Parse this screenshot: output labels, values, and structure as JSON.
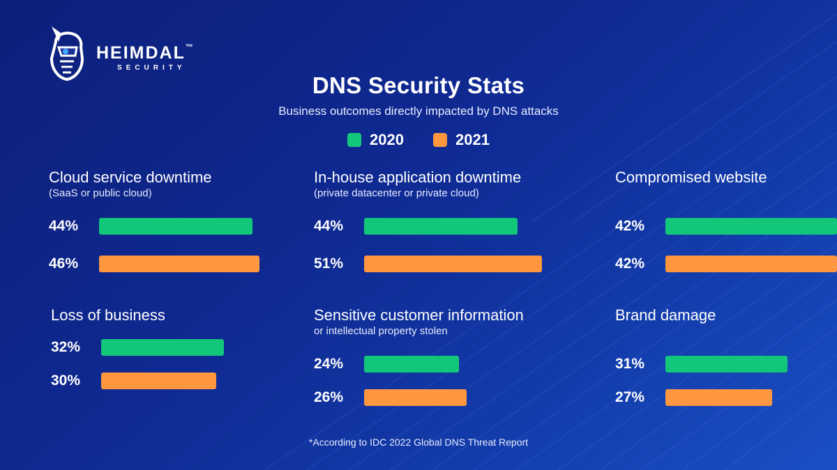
{
  "brand": {
    "name": "HEIMDAL",
    "tm": "™",
    "sub": "SECURITY",
    "logo_icon": "viking-helmet-icon"
  },
  "colors": {
    "series_2020": "#13c77a",
    "series_2021": "#ff9640"
  },
  "chart_data": {
    "type": "bar",
    "orientation": "horizontal",
    "title": "DNS Security Stats",
    "subtitle": "Business outcomes directly impacted by DNS attacks",
    "legend_position": "top-center",
    "xlim": [
      0,
      100
    ],
    "series_names": [
      "2020",
      "2021"
    ],
    "panels": [
      {
        "title": "Cloud service downtime",
        "note": "(SaaS or public cloud)",
        "values": [
          44,
          46
        ],
        "labels": [
          "44%",
          "46%"
        ]
      },
      {
        "title": "In-house application downtime",
        "note": "(private datacenter or private cloud)",
        "values": [
          44,
          51
        ],
        "labels": [
          "44%",
          "51%"
        ]
      },
      {
        "title": "Compromised website",
        "note": "",
        "values": [
          42,
          42
        ],
        "labels": [
          "42%",
          "42%"
        ]
      },
      {
        "title": "Loss of business",
        "note": "",
        "values": [
          32,
          30
        ],
        "labels": [
          "32%",
          "30%"
        ]
      },
      {
        "title": "Sensitive customer information",
        "note": "or intellectual property stolen",
        "values": [
          24,
          26
        ],
        "labels": [
          "24%",
          "26%"
        ]
      },
      {
        "title": "Brand damage",
        "note": "",
        "values": [
          31,
          27
        ],
        "labels": [
          "31%",
          "27%"
        ]
      }
    ]
  },
  "footnote": "*According to IDC 2022 Global DNS Threat Report"
}
